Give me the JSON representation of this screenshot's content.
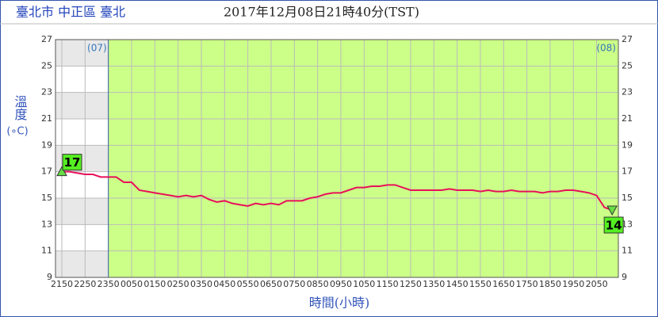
{
  "header": {
    "location": "臺北市 中正區 臺北",
    "time": "2017年12月08日21時40分(TST)"
  },
  "chart_data": {
    "type": "line",
    "ylabel": "溫度",
    "yunit": "(∘C)",
    "xlabel": "時間(小時)",
    "day_labels": [
      "(07)",
      "(08)"
    ],
    "categories": [
      "2150",
      null,
      null,
      "2250",
      null,
      null,
      "2350",
      null,
      null,
      "0050",
      null,
      null,
      "0150",
      null,
      null,
      "0250",
      null,
      null,
      "0350",
      null,
      null,
      "0450",
      null,
      null,
      "0550",
      null,
      null,
      "0650",
      null,
      null,
      "0750",
      null,
      null,
      "0850",
      null,
      null,
      "0950",
      null,
      null,
      "1050",
      null,
      null,
      "1150",
      null,
      null,
      "1250",
      null,
      null,
      "1350",
      null,
      null,
      "1450",
      null,
      null,
      "1550",
      null,
      null,
      "1650",
      null,
      null,
      "1750",
      null,
      null,
      "1850",
      null,
      null,
      "1950",
      null,
      null,
      "2050",
      null,
      null
    ],
    "series": [
      {
        "name": "溫度",
        "color": "#e8105a",
        "values": [
          17,
          17,
          16.9,
          16.8,
          16.8,
          16.6,
          16.6,
          16.6,
          16.2,
          16.2,
          15.6,
          15.5,
          15.4,
          15.3,
          15.2,
          15.1,
          15.2,
          15.1,
          15.2,
          14.9,
          14.7,
          14.8,
          14.6,
          14.5,
          14.4,
          14.6,
          14.5,
          14.6,
          14.5,
          14.8,
          14.8,
          14.8,
          15.0,
          15.1,
          15.3,
          15.4,
          15.4,
          15.6,
          15.8,
          15.8,
          15.9,
          15.9,
          16.0,
          16.0,
          15.8,
          15.6,
          15.6,
          15.6,
          15.6,
          15.6,
          15.7,
          15.6,
          15.6,
          15.6,
          15.5,
          15.6,
          15.5,
          15.5,
          15.6,
          15.5,
          15.5,
          15.5,
          15.4,
          15.5,
          15.5,
          15.6,
          15.6,
          15.5,
          15.4,
          15.2,
          14.3,
          14.1
        ]
      }
    ],
    "max_label": "17",
    "min_label": "14",
    "ylim": [
      9,
      27
    ],
    "yticks": [
      9,
      11,
      13,
      15,
      17,
      19,
      21,
      23,
      25,
      27
    ],
    "grid": true,
    "plot_color": "#ccff88"
  }
}
